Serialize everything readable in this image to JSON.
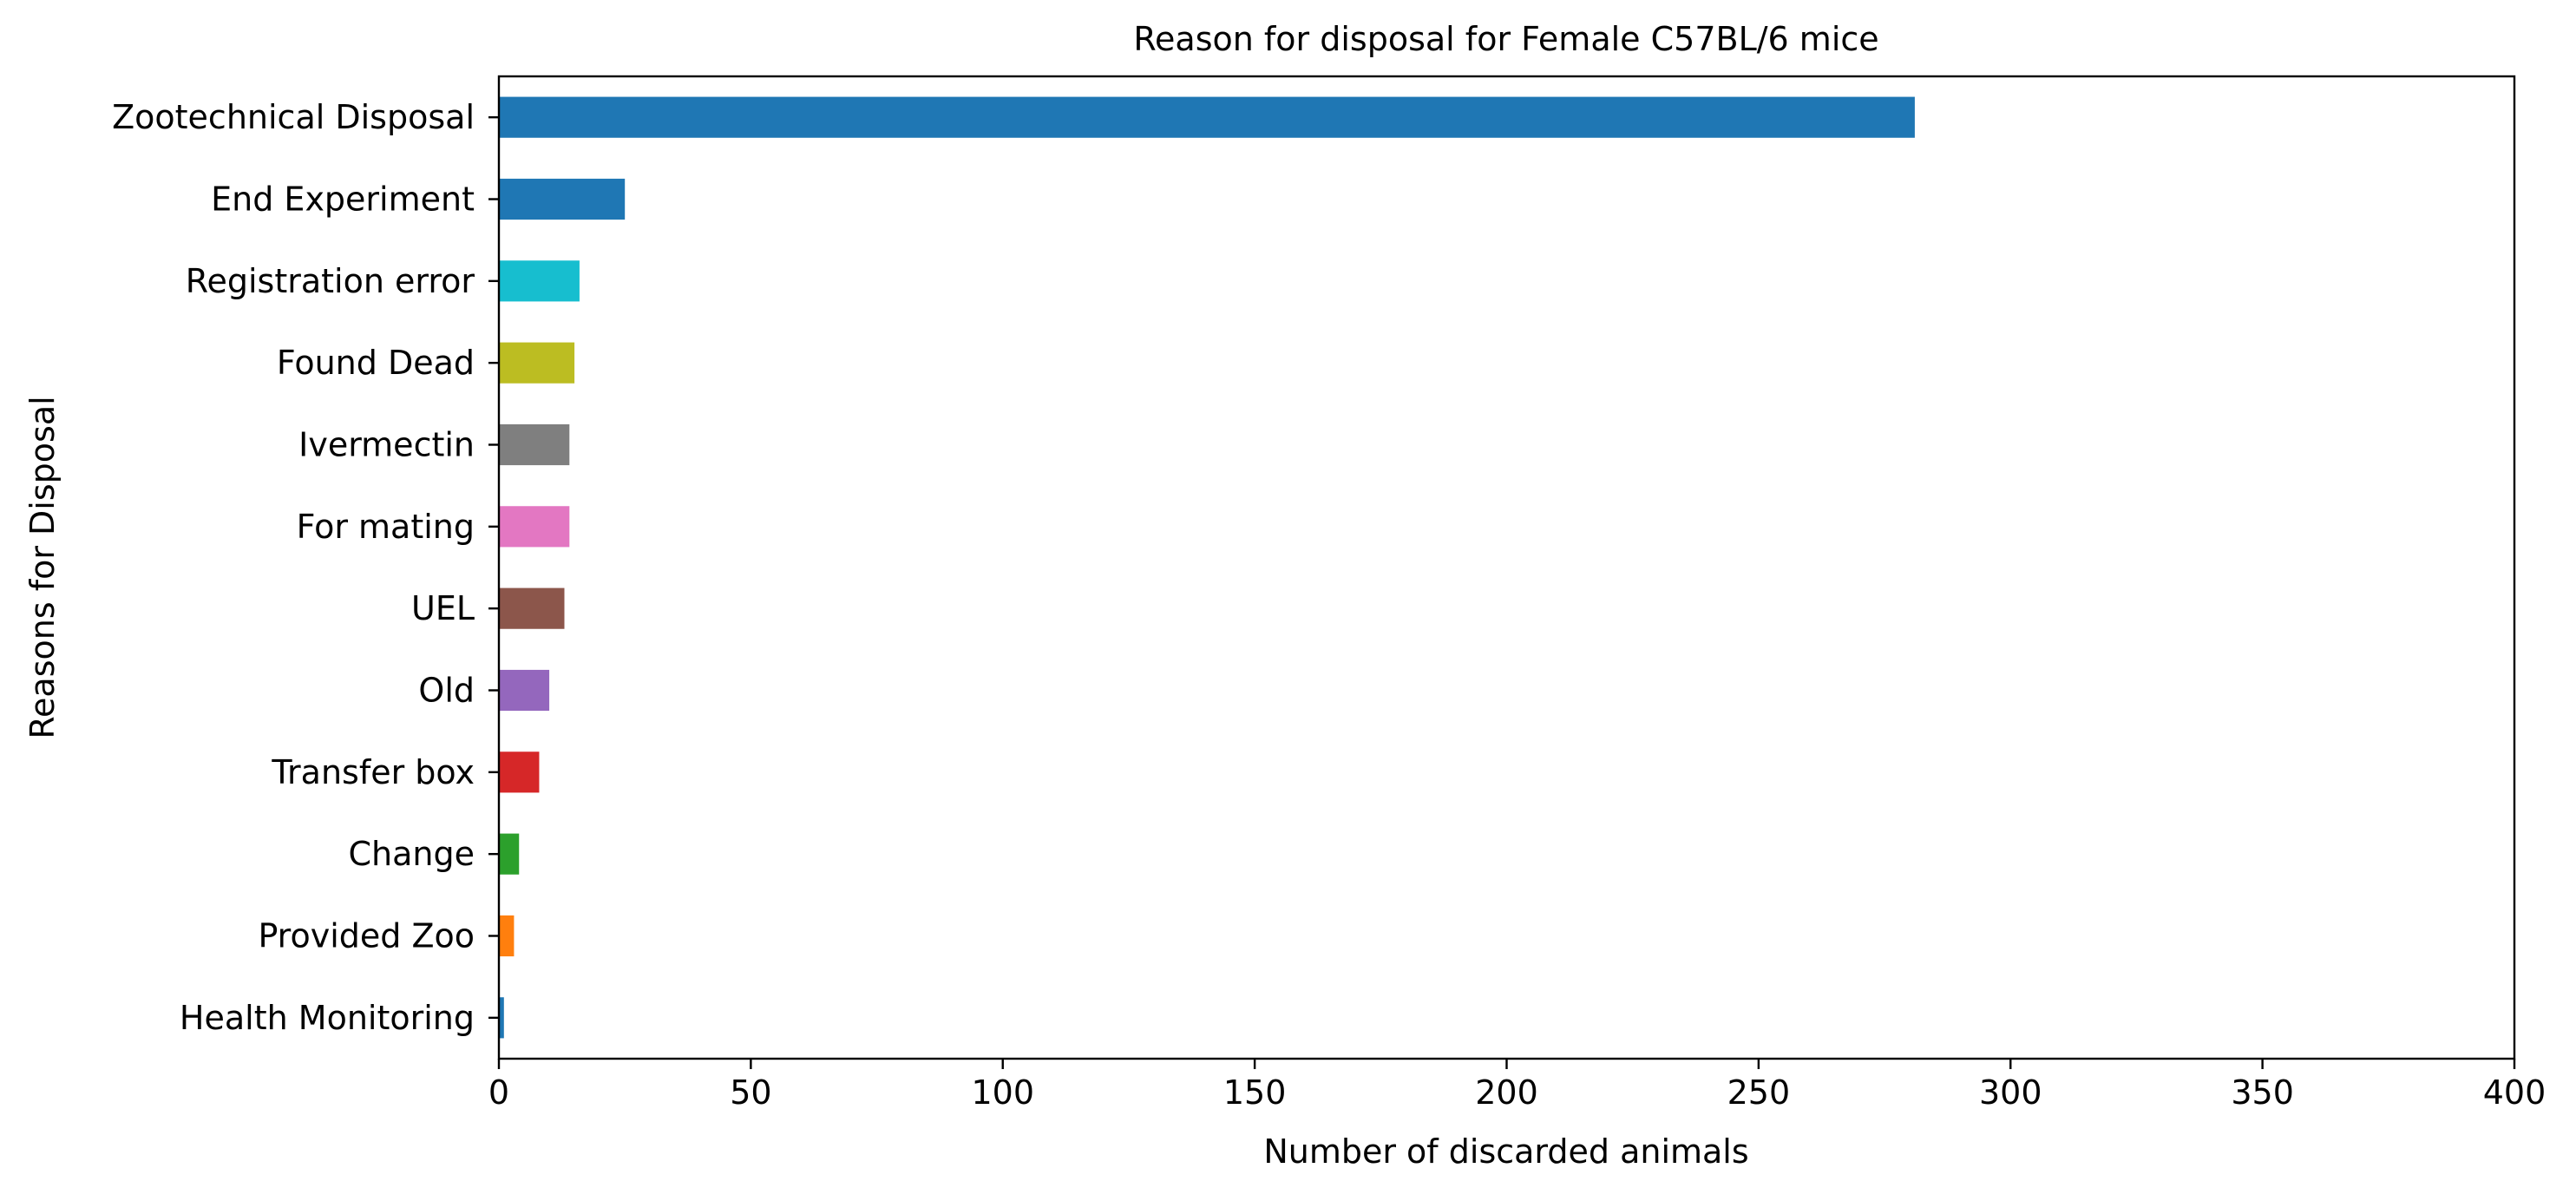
{
  "chart_data": {
    "type": "bar",
    "orientation": "horizontal",
    "title": "Reason for disposal for Female C57BL/6 mice",
    "xlabel": "Number of discarded animals",
    "ylabel": "Reasons for Disposal",
    "xlim": [
      0,
      400
    ],
    "xticks": [
      0,
      50,
      100,
      150,
      200,
      250,
      300,
      350,
      400
    ],
    "grid": false,
    "legend": "none",
    "categories": [
      "Zootechnical Disposal",
      "End Experiment",
      "Registration error",
      "Found Dead",
      "Ivermectin",
      "For mating",
      "UEL",
      "Old",
      "Transfer box",
      "Change",
      "Provided Zoo",
      "Health Monitoring"
    ],
    "values": [
      281,
      25,
      16,
      15,
      14,
      14,
      13,
      10,
      8,
      4,
      3,
      1
    ],
    "colors": [
      "#1f77b4",
      "#1f77b4",
      "#17becf",
      "#bcbd22",
      "#7f7f7f",
      "#e377c2",
      "#8c564b",
      "#9467bd",
      "#d62728",
      "#2ca02c",
      "#ff7f0e",
      "#1f77b4"
    ]
  }
}
